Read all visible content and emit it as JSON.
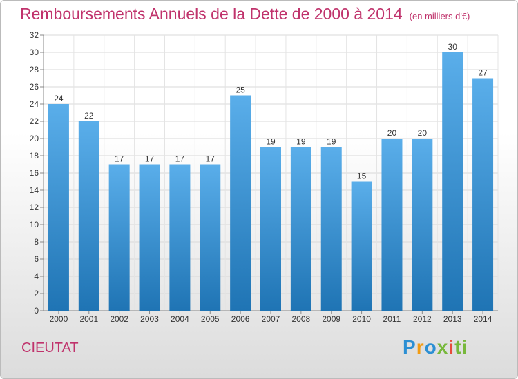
{
  "title": "Remboursements Annuels de la Dette de 2000 à 2014",
  "unit": "(en milliers d'€)",
  "place": "CIEUTAT",
  "logo": "Proxiti",
  "colors": {
    "bar": "#3a93d8",
    "title": "#c0336c"
  },
  "chart_data": {
    "type": "bar",
    "title": "Remboursements Annuels de la Dette de 2000 à 2014",
    "ylabel": "(en milliers d'€)",
    "xlabel": "",
    "categories": [
      "2000",
      "2001",
      "2002",
      "2003",
      "2004",
      "2005",
      "2006",
      "2007",
      "2008",
      "2009",
      "2010",
      "2011",
      "2012",
      "2013",
      "2014"
    ],
    "values": [
      24,
      22,
      17,
      17,
      17,
      17,
      25,
      19,
      19,
      19,
      15,
      20,
      20,
      30,
      27
    ],
    "ylim": [
      0,
      32
    ],
    "yticks": [
      0,
      2,
      4,
      6,
      8,
      10,
      12,
      14,
      16,
      18,
      20,
      22,
      24,
      26,
      28,
      30,
      32
    ],
    "grid": true
  }
}
